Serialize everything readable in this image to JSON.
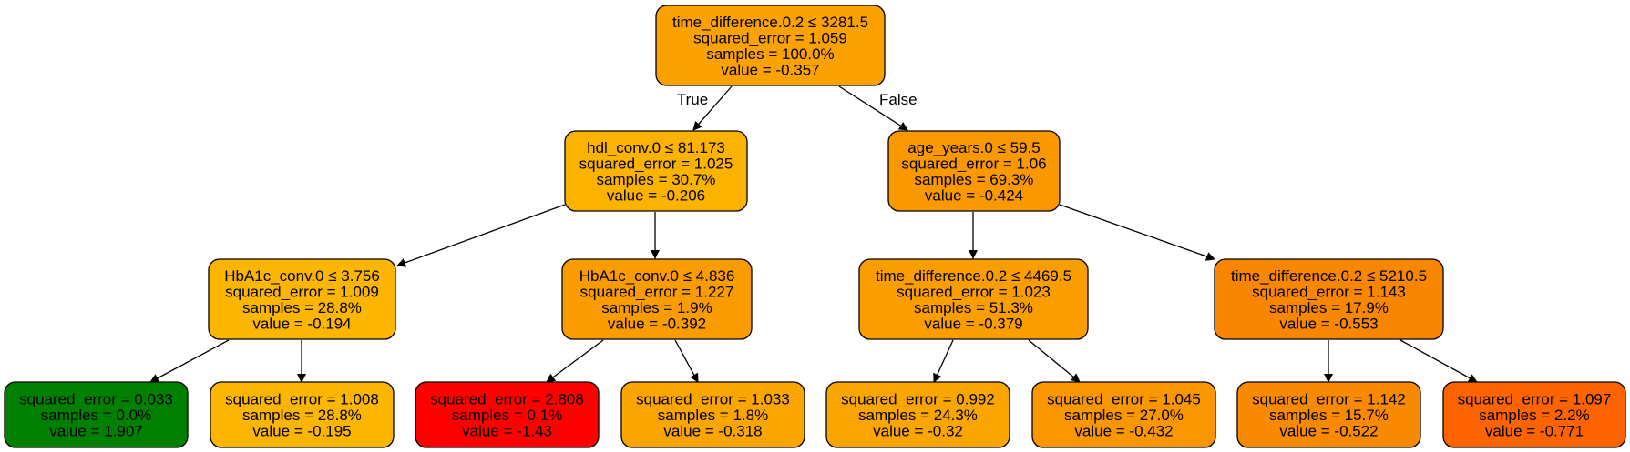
{
  "tree": {
    "nodes": [
      {
        "id": "n0",
        "lines": [
          "time_difference.0.2 ≤ 3281.5",
          "squared_error = 1.059",
          "samples = 100.0%",
          "value = -0.357"
        ],
        "fill": "#fba100"
      },
      {
        "id": "n1",
        "lines": [
          "hdl_conv.0 ≤ 81.173",
          "squared_error = 1.025",
          "samples = 30.7%",
          "value = -0.206"
        ],
        "fill": "#fcb300"
      },
      {
        "id": "n2",
        "lines": [
          "age_years.0 ≤ 59.5",
          "squared_error = 1.06",
          "samples = 69.3%",
          "value = -0.424"
        ],
        "fill": "#fa9800"
      },
      {
        "id": "n3",
        "lines": [
          "HbA1c_conv.0 ≤ 3.756",
          "squared_error = 1.009",
          "samples = 28.8%",
          "value = -0.194"
        ],
        "fill": "#fcb500"
      },
      {
        "id": "n4",
        "lines": [
          "HbA1c_conv.0 ≤ 4.836",
          "squared_error = 1.227",
          "samples = 1.9%",
          "value = -0.392"
        ],
        "fill": "#fa9c00"
      },
      {
        "id": "n5",
        "lines": [
          "time_difference.0.2 ≤ 4469.5",
          "squared_error = 1.023",
          "samples = 51.3%",
          "value = -0.379"
        ],
        "fill": "#fa9e00"
      },
      {
        "id": "n6",
        "lines": [
          "time_difference.0.2 ≤ 5210.5",
          "squared_error = 1.143",
          "samples = 17.9%",
          "value = -0.553"
        ],
        "fill": "#f98600"
      },
      {
        "id": "n7",
        "lines": [
          "squared_error = 0.033",
          "samples = 0.0%",
          "value = 1.907"
        ],
        "fill": "#008000"
      },
      {
        "id": "n8",
        "lines": [
          "squared_error = 1.008",
          "samples = 28.8%",
          "value = -0.195"
        ],
        "fill": "#fcb500"
      },
      {
        "id": "n9",
        "lines": [
          "squared_error = 2.808",
          "samples = 0.1%",
          "value = -1.43"
        ],
        "fill": "#ff0000"
      },
      {
        "id": "n10",
        "lines": [
          "squared_error = 1.033",
          "samples = 1.8%",
          "value = -0.318"
        ],
        "fill": "#fba600"
      },
      {
        "id": "n11",
        "lines": [
          "squared_error = 0.992",
          "samples = 24.3%",
          "value = -0.32"
        ],
        "fill": "#fba600"
      },
      {
        "id": "n12",
        "lines": [
          "squared_error = 1.045",
          "samples = 27.0%",
          "value = -0.432"
        ],
        "fill": "#fa9700"
      },
      {
        "id": "n13",
        "lines": [
          "squared_error = 1.142",
          "samples = 15.7%",
          "value = -0.522"
        ],
        "fill": "#f98a00"
      },
      {
        "id": "n14",
        "lines": [
          "squared_error = 1.097",
          "samples = 2.2%",
          "value = -0.771"
        ],
        "fill": "#fd6400"
      }
    ],
    "edges": [
      {
        "from": "n0",
        "to": "n1",
        "label": "True"
      },
      {
        "from": "n0",
        "to": "n2",
        "label": "False"
      },
      {
        "from": "n1",
        "to": "n3",
        "label": ""
      },
      {
        "from": "n1",
        "to": "n4",
        "label": ""
      },
      {
        "from": "n2",
        "to": "n5",
        "label": ""
      },
      {
        "from": "n2",
        "to": "n6",
        "label": ""
      },
      {
        "from": "n3",
        "to": "n7",
        "label": ""
      },
      {
        "from": "n3",
        "to": "n8",
        "label": ""
      },
      {
        "from": "n4",
        "to": "n9",
        "label": ""
      },
      {
        "from": "n4",
        "to": "n10",
        "label": ""
      },
      {
        "from": "n5",
        "to": "n11",
        "label": ""
      },
      {
        "from": "n5",
        "to": "n12",
        "label": ""
      },
      {
        "from": "n6",
        "to": "n13",
        "label": ""
      },
      {
        "from": "n6",
        "to": "n14",
        "label": ""
      }
    ]
  }
}
